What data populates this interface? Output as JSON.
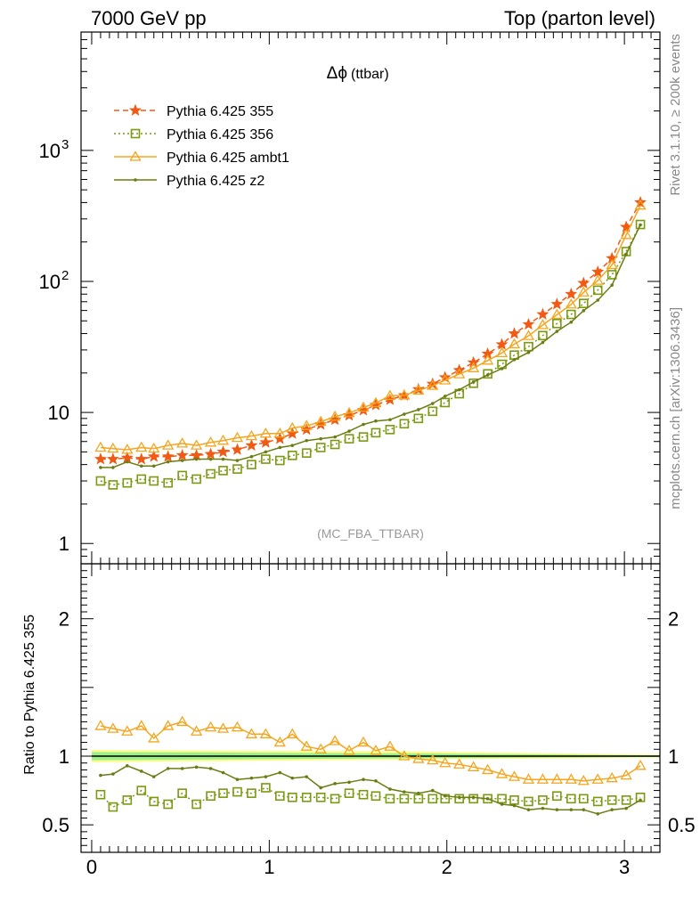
{
  "header": {
    "left": "7000 GeV pp",
    "right": "Top (parton level)"
  },
  "side_text": {
    "upper": "Rivet 3.1.10, ≥ 200k events",
    "lower": "mcplots.cern.ch [arXiv:1306.3436]"
  },
  "chart_data": [
    {
      "type": "line",
      "title_symbol": "Δϕ",
      "title_suffix": "(ttbar)",
      "watermark": "(MC_FBA_TTBAR)",
      "yscale": "log",
      "xlim": [
        -0.06,
        3.2
      ],
      "ylim": [
        0.7,
        8000
      ],
      "y_ticks": [
        {
          "value": 1,
          "label": "1"
        },
        {
          "value": 10,
          "label": "10"
        },
        {
          "value": 100,
          "label": "10",
          "sup": "2"
        },
        {
          "value": 1000,
          "label": "10",
          "sup": "3"
        }
      ],
      "legend_position": "top-left",
      "x": [
        0.05,
        0.12,
        0.2,
        0.28,
        0.35,
        0.43,
        0.51,
        0.59,
        0.67,
        0.74,
        0.82,
        0.9,
        0.98,
        1.06,
        1.13,
        1.21,
        1.29,
        1.37,
        1.45,
        1.53,
        1.6,
        1.68,
        1.76,
        1.84,
        1.92,
        1.99,
        2.07,
        2.15,
        2.23,
        2.31,
        2.38,
        2.46,
        2.54,
        2.62,
        2.7,
        2.77,
        2.85,
        2.93,
        3.01,
        3.09
      ],
      "series": [
        {
          "name": "Pythia 6.425 355",
          "color": "#f05a14",
          "marker": "star",
          "line": "dashed",
          "values": [
            4.4,
            4.4,
            4.5,
            4.4,
            4.6,
            4.6,
            4.7,
            4.7,
            4.8,
            5.0,
            5.2,
            5.6,
            5.9,
            6.3,
            6.9,
            7.4,
            8.1,
            8.8,
            9.5,
            10.4,
            11.4,
            12.5,
            13.5,
            15.0,
            16.5,
            18.5,
            21.0,
            24.0,
            28.0,
            33.0,
            40.0,
            47.0,
            56.0,
            67.0,
            80.0,
            97.0,
            118.0,
            150.0,
            260.0,
            400.0
          ]
        },
        {
          "name": "Pythia 6.425 356",
          "color": "#7a9a10",
          "marker": "open-square",
          "line": "dotted",
          "values": [
            3.0,
            2.8,
            2.9,
            3.1,
            3.0,
            2.9,
            3.3,
            3.1,
            3.4,
            3.6,
            3.7,
            4.0,
            4.4,
            4.3,
            4.7,
            4.9,
            5.4,
            5.7,
            6.3,
            6.5,
            7.0,
            7.4,
            8.2,
            9.0,
            10.2,
            11.9,
            13.9,
            16.7,
            19.7,
            23.3,
            27.4,
            31.8,
            38.6,
            47.7,
            56.0,
            67.9,
            85.7,
            112.5,
            169.0,
            272.0
          ]
        },
        {
          "name": "Pythia 6.425 ambt1",
          "color": "#f5a51e",
          "marker": "open-triangle",
          "line": "solid",
          "values": [
            5.4,
            5.3,
            5.2,
            5.4,
            5.3,
            5.6,
            5.8,
            5.6,
            5.9,
            6.1,
            6.4,
            6.6,
            6.9,
            6.9,
            7.6,
            7.9,
            8.5,
            9.3,
            9.9,
            10.9,
            11.8,
            13.4,
            13.5,
            14.7,
            16.0,
            17.6,
            19.6,
            21.8,
            24.9,
            28.4,
            33.2,
            38.4,
            46.5,
            55.7,
            66.8,
            82.5,
            101.4,
            133.5,
            226.2,
            380.0
          ]
        },
        {
          "name": "Pythia 6.425 z2",
          "color": "#6b7d12",
          "marker": "point",
          "line": "solid",
          "values": [
            3.8,
            3.8,
            4.2,
            3.9,
            3.9,
            4.2,
            4.3,
            4.4,
            4.4,
            4.4,
            4.3,
            4.6,
            5.0,
            5.4,
            5.6,
            6.1,
            6.3,
            6.5,
            7.2,
            8.1,
            8.6,
            8.8,
            9.7,
            10.5,
            11.7,
            13.3,
            14.9,
            17.1,
            19.3,
            21.6,
            25.3,
            28.7,
            34.2,
            41.6,
            48.9,
            59.8,
            71.9,
            93.7,
            161.2,
            270.0
          ]
        }
      ]
    },
    {
      "type": "line",
      "ylabel": "Ratio to Pythia 6.425 355",
      "xlim": [
        -0.06,
        3.2
      ],
      "ylim": [
        0.3,
        2.4
      ],
      "x_ticks": [
        {
          "value": 0,
          "label": "0"
        },
        {
          "value": 1,
          "label": "1"
        },
        {
          "value": 2,
          "label": "2"
        },
        {
          "value": 3,
          "label": "3"
        }
      ],
      "y_ticks": [
        {
          "value": 0.5,
          "label": "0.5"
        },
        {
          "value": 1,
          "label": "1"
        },
        {
          "value": 2,
          "label": "2"
        }
      ],
      "reference_line": 1,
      "band_colors": [
        "#fffb8a",
        "#9cf08c"
      ],
      "x": [
        0.05,
        0.12,
        0.2,
        0.28,
        0.35,
        0.43,
        0.51,
        0.59,
        0.67,
        0.74,
        0.82,
        0.9,
        0.98,
        1.06,
        1.13,
        1.21,
        1.29,
        1.37,
        1.45,
        1.53,
        1.6,
        1.68,
        1.76,
        1.84,
        1.92,
        1.99,
        2.07,
        2.15,
        2.23,
        2.31,
        2.38,
        2.46,
        2.54,
        2.62,
        2.7,
        2.77,
        2.85,
        2.93,
        3.01,
        3.09
      ],
      "series": [
        {
          "name": "Pythia 6.425 356",
          "color": "#7a9a10",
          "marker": "open-square",
          "line": "dotted",
          "values": [
            0.72,
            0.63,
            0.68,
            0.75,
            0.67,
            0.65,
            0.73,
            0.65,
            0.71,
            0.73,
            0.74,
            0.73,
            0.77,
            0.71,
            0.7,
            0.7,
            0.7,
            0.69,
            0.73,
            0.72,
            0.71,
            0.69,
            0.69,
            0.69,
            0.69,
            0.69,
            0.69,
            0.69,
            0.69,
            0.69,
            0.68,
            0.67,
            0.68,
            0.71,
            0.69,
            0.69,
            0.67,
            0.68,
            0.68,
            0.7
          ]
        },
        {
          "name": "Pythia 6.425 ambt1",
          "color": "#f5a51e",
          "marker": "open-triangle",
          "line": "solid",
          "values": [
            1.22,
            1.2,
            1.18,
            1.22,
            1.13,
            1.22,
            1.25,
            1.18,
            1.21,
            1.2,
            1.21,
            1.16,
            1.16,
            1.1,
            1.16,
            1.07,
            1.05,
            1.11,
            1.04,
            1.1,
            1.04,
            1.07,
            1.0,
            0.98,
            0.97,
            0.95,
            0.94,
            0.92,
            0.9,
            0.87,
            0.85,
            0.83,
            0.83,
            0.83,
            0.83,
            0.82,
            0.83,
            0.84,
            0.86,
            0.93
          ]
        },
        {
          "name": "Pythia 6.425 z2",
          "color": "#6b7d12",
          "marker": "point",
          "line": "solid",
          "values": [
            0.86,
            0.87,
            0.93,
            0.89,
            0.85,
            0.91,
            0.91,
            0.92,
            0.91,
            0.88,
            0.83,
            0.84,
            0.85,
            0.88,
            0.84,
            0.85,
            0.77,
            0.8,
            0.81,
            0.83,
            0.82,
            0.76,
            0.74,
            0.73,
            0.75,
            0.71,
            0.7,
            0.7,
            0.69,
            0.65,
            0.64,
            0.61,
            0.62,
            0.61,
            0.61,
            0.61,
            0.58,
            0.61,
            0.62,
            0.68
          ]
        }
      ]
    }
  ]
}
